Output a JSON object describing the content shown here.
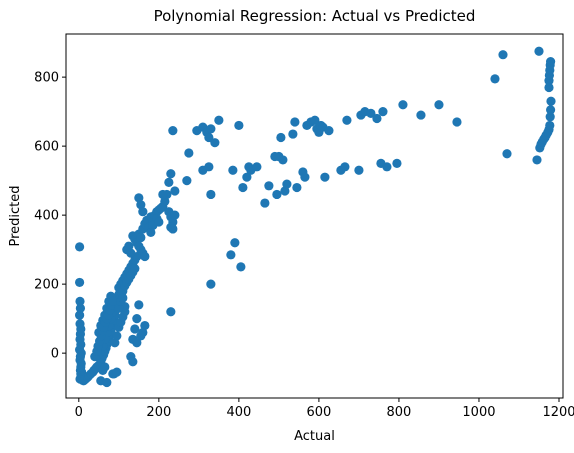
{
  "chart_data": {
    "type": "scatter",
    "title": "Polynomial Regression: Actual vs Predicted",
    "xlabel": "Actual",
    "ylabel": "Predicted",
    "xlim": [
      -32,
      1210
    ],
    "ylim": [
      -130,
      925
    ],
    "xticks": [
      0,
      200,
      400,
      600,
      800,
      1000,
      1200
    ],
    "yticks": [
      0,
      200,
      400,
      600,
      800
    ],
    "grid": false,
    "legend": "none",
    "marker_color": "#1f77b4",
    "points": [
      [
        2,
        308
      ],
      [
        2,
        205
      ],
      [
        3,
        150
      ],
      [
        4,
        130
      ],
      [
        2,
        110
      ],
      [
        3,
        85
      ],
      [
        5,
        70
      ],
      [
        4,
        55
      ],
      [
        3,
        40
      ],
      [
        5,
        25
      ],
      [
        2,
        10
      ],
      [
        6,
        0
      ],
      [
        4,
        -10
      ],
      [
        3,
        -20
      ],
      [
        6,
        -30
      ],
      [
        5,
        -40
      ],
      [
        4,
        -50
      ],
      [
        7,
        -55
      ],
      [
        5,
        -60
      ],
      [
        6,
        -65
      ],
      [
        8,
        -70
      ],
      [
        3,
        -75
      ],
      [
        9,
        -78
      ],
      [
        12,
        -80
      ],
      [
        15,
        -77
      ],
      [
        18,
        -74
      ],
      [
        22,
        -70
      ],
      [
        25,
        -66
      ],
      [
        30,
        -60
      ],
      [
        35,
        -55
      ],
      [
        38,
        -50
      ],
      [
        42,
        -45
      ],
      [
        45,
        -40
      ],
      [
        50,
        -35
      ],
      [
        55,
        -25
      ],
      [
        58,
        -15
      ],
      [
        62,
        -5
      ],
      [
        65,
        5
      ],
      [
        68,
        15
      ],
      [
        70,
        25
      ],
      [
        72,
        35
      ],
      [
        75,
        45
      ],
      [
        78,
        55
      ],
      [
        80,
        65
      ],
      [
        82,
        75
      ],
      [
        85,
        85
      ],
      [
        88,
        95
      ],
      [
        90,
        110
      ],
      [
        92,
        125
      ],
      [
        95,
        140
      ],
      [
        60,
        20
      ],
      [
        65,
        40
      ],
      [
        70,
        60
      ],
      [
        75,
        80
      ],
      [
        80,
        100
      ],
      [
        85,
        120
      ],
      [
        90,
        140
      ],
      [
        95,
        160
      ],
      [
        100,
        170
      ],
      [
        105,
        180
      ],
      [
        50,
        60
      ],
      [
        55,
        80
      ],
      [
        60,
        95
      ],
      [
        65,
        110
      ],
      [
        70,
        130
      ],
      [
        75,
        150
      ],
      [
        80,
        165
      ],
      [
        40,
        -10
      ],
      [
        45,
        5
      ],
      [
        48,
        20
      ],
      [
        52,
        35
      ],
      [
        56,
        50
      ],
      [
        59,
        65
      ],
      [
        62,
        75
      ],
      [
        66,
        90
      ],
      [
        70,
        100
      ],
      [
        74,
        110
      ],
      [
        78,
        125
      ],
      [
        82,
        140
      ],
      [
        86,
        150
      ],
      [
        55,
        -80
      ],
      [
        60,
        -50
      ],
      [
        65,
        -40
      ],
      [
        88,
        -60
      ],
      [
        90,
        30
      ],
      [
        95,
        50
      ],
      [
        100,
        75
      ],
      [
        105,
        90
      ],
      [
        110,
        105
      ],
      [
        115,
        120
      ],
      [
        100,
        190
      ],
      [
        105,
        200
      ],
      [
        110,
        210
      ],
      [
        115,
        220
      ],
      [
        120,
        230
      ],
      [
        125,
        240
      ],
      [
        130,
        250
      ],
      [
        135,
        260
      ],
      [
        140,
        270
      ],
      [
        145,
        280
      ],
      [
        110,
        180
      ],
      [
        115,
        195
      ],
      [
        120,
        205
      ],
      [
        125,
        215
      ],
      [
        130,
        225
      ],
      [
        135,
        235
      ],
      [
        140,
        245
      ],
      [
        120,
        300
      ],
      [
        125,
        310
      ],
      [
        130,
        290
      ],
      [
        135,
        340
      ],
      [
        140,
        330
      ],
      [
        145,
        320
      ],
      [
        150,
        345
      ],
      [
        155,
        335
      ],
      [
        150,
        310
      ],
      [
        155,
        300
      ],
      [
        160,
        290
      ],
      [
        165,
        280
      ],
      [
        160,
        360
      ],
      [
        165,
        375
      ],
      [
        170,
        385
      ],
      [
        175,
        365
      ],
      [
        180,
        350
      ],
      [
        180,
        395
      ],
      [
        185,
        380
      ],
      [
        190,
        400
      ],
      [
        195,
        410
      ],
      [
        200,
        415
      ],
      [
        205,
        420
      ],
      [
        210,
        425
      ],
      [
        215,
        440
      ],
      [
        220,
        460
      ],
      [
        225,
        410
      ],
      [
        230,
        395
      ],
      [
        235,
        380
      ],
      [
        240,
        400
      ],
      [
        230,
        365
      ],
      [
        235,
        360
      ],
      [
        150,
        450
      ],
      [
        155,
        430
      ],
      [
        160,
        410
      ],
      [
        225,
        495
      ],
      [
        230,
        520
      ],
      [
        235,
        645
      ],
      [
        240,
        470
      ],
      [
        150,
        140
      ],
      [
        145,
        100
      ],
      [
        140,
        70
      ],
      [
        135,
        40
      ],
      [
        130,
        -10
      ],
      [
        135,
        -25
      ],
      [
        165,
        80
      ],
      [
        160,
        60
      ],
      [
        155,
        50
      ],
      [
        145,
        30
      ],
      [
        85,
        -60
      ],
      [
        95,
        -55
      ],
      [
        70,
        -85
      ],
      [
        115,
        135
      ],
      [
        100,
        130
      ],
      [
        105,
        150
      ],
      [
        110,
        160
      ],
      [
        185,
        370
      ],
      [
        195,
        390
      ],
      [
        200,
        380
      ],
      [
        230,
        120
      ],
      [
        210,
        460
      ],
      [
        270,
        500
      ],
      [
        275,
        580
      ],
      [
        295,
        645
      ],
      [
        310,
        655
      ],
      [
        320,
        640
      ],
      [
        325,
        625
      ],
      [
        330,
        650
      ],
      [
        340,
        610
      ],
      [
        350,
        675
      ],
      [
        310,
        530
      ],
      [
        325,
        540
      ],
      [
        330,
        460
      ],
      [
        330,
        200
      ],
      [
        380,
        285
      ],
      [
        390,
        320
      ],
      [
        405,
        250
      ],
      [
        385,
        530
      ],
      [
        400,
        660
      ],
      [
        410,
        480
      ],
      [
        420,
        510
      ],
      [
        425,
        540
      ],
      [
        430,
        530
      ],
      [
        445,
        540
      ],
      [
        465,
        435
      ],
      [
        475,
        485
      ],
      [
        490,
        570
      ],
      [
        495,
        460
      ],
      [
        500,
        570
      ],
      [
        505,
        625
      ],
      [
        510,
        560
      ],
      [
        515,
        470
      ],
      [
        520,
        490
      ],
      [
        535,
        635
      ],
      [
        540,
        670
      ],
      [
        545,
        480
      ],
      [
        560,
        525
      ],
      [
        565,
        510
      ],
      [
        570,
        660
      ],
      [
        580,
        670
      ],
      [
        590,
        675
      ],
      [
        595,
        650
      ],
      [
        600,
        640
      ],
      [
        605,
        660
      ],
      [
        610,
        655
      ],
      [
        615,
        510
      ],
      [
        625,
        645
      ],
      [
        655,
        530
      ],
      [
        665,
        540
      ],
      [
        670,
        675
      ],
      [
        700,
        530
      ],
      [
        705,
        690
      ],
      [
        715,
        700
      ],
      [
        730,
        695
      ],
      [
        745,
        680
      ],
      [
        755,
        550
      ],
      [
        760,
        700
      ],
      [
        770,
        540
      ],
      [
        795,
        550
      ],
      [
        810,
        720
      ],
      [
        855,
        690
      ],
      [
        900,
        720
      ],
      [
        945,
        670
      ],
      [
        1040,
        795
      ],
      [
        1060,
        865
      ],
      [
        1070,
        578
      ],
      [
        1145,
        560
      ],
      [
        1150,
        875
      ],
      [
        1152,
        595
      ],
      [
        1155,
        605
      ],
      [
        1158,
        612
      ],
      [
        1162,
        620
      ],
      [
        1165,
        625
      ],
      [
        1168,
        632
      ],
      [
        1172,
        640
      ],
      [
        1175,
        648
      ],
      [
        1177,
        660
      ],
      [
        1178,
        685
      ],
      [
        1179,
        705
      ],
      [
        1180,
        730
      ],
      [
        1175,
        790
      ],
      [
        1176,
        805
      ],
      [
        1177,
        820
      ],
      [
        1178,
        835
      ],
      [
        1179,
        845
      ],
      [
        1175,
        770
      ]
    ]
  }
}
